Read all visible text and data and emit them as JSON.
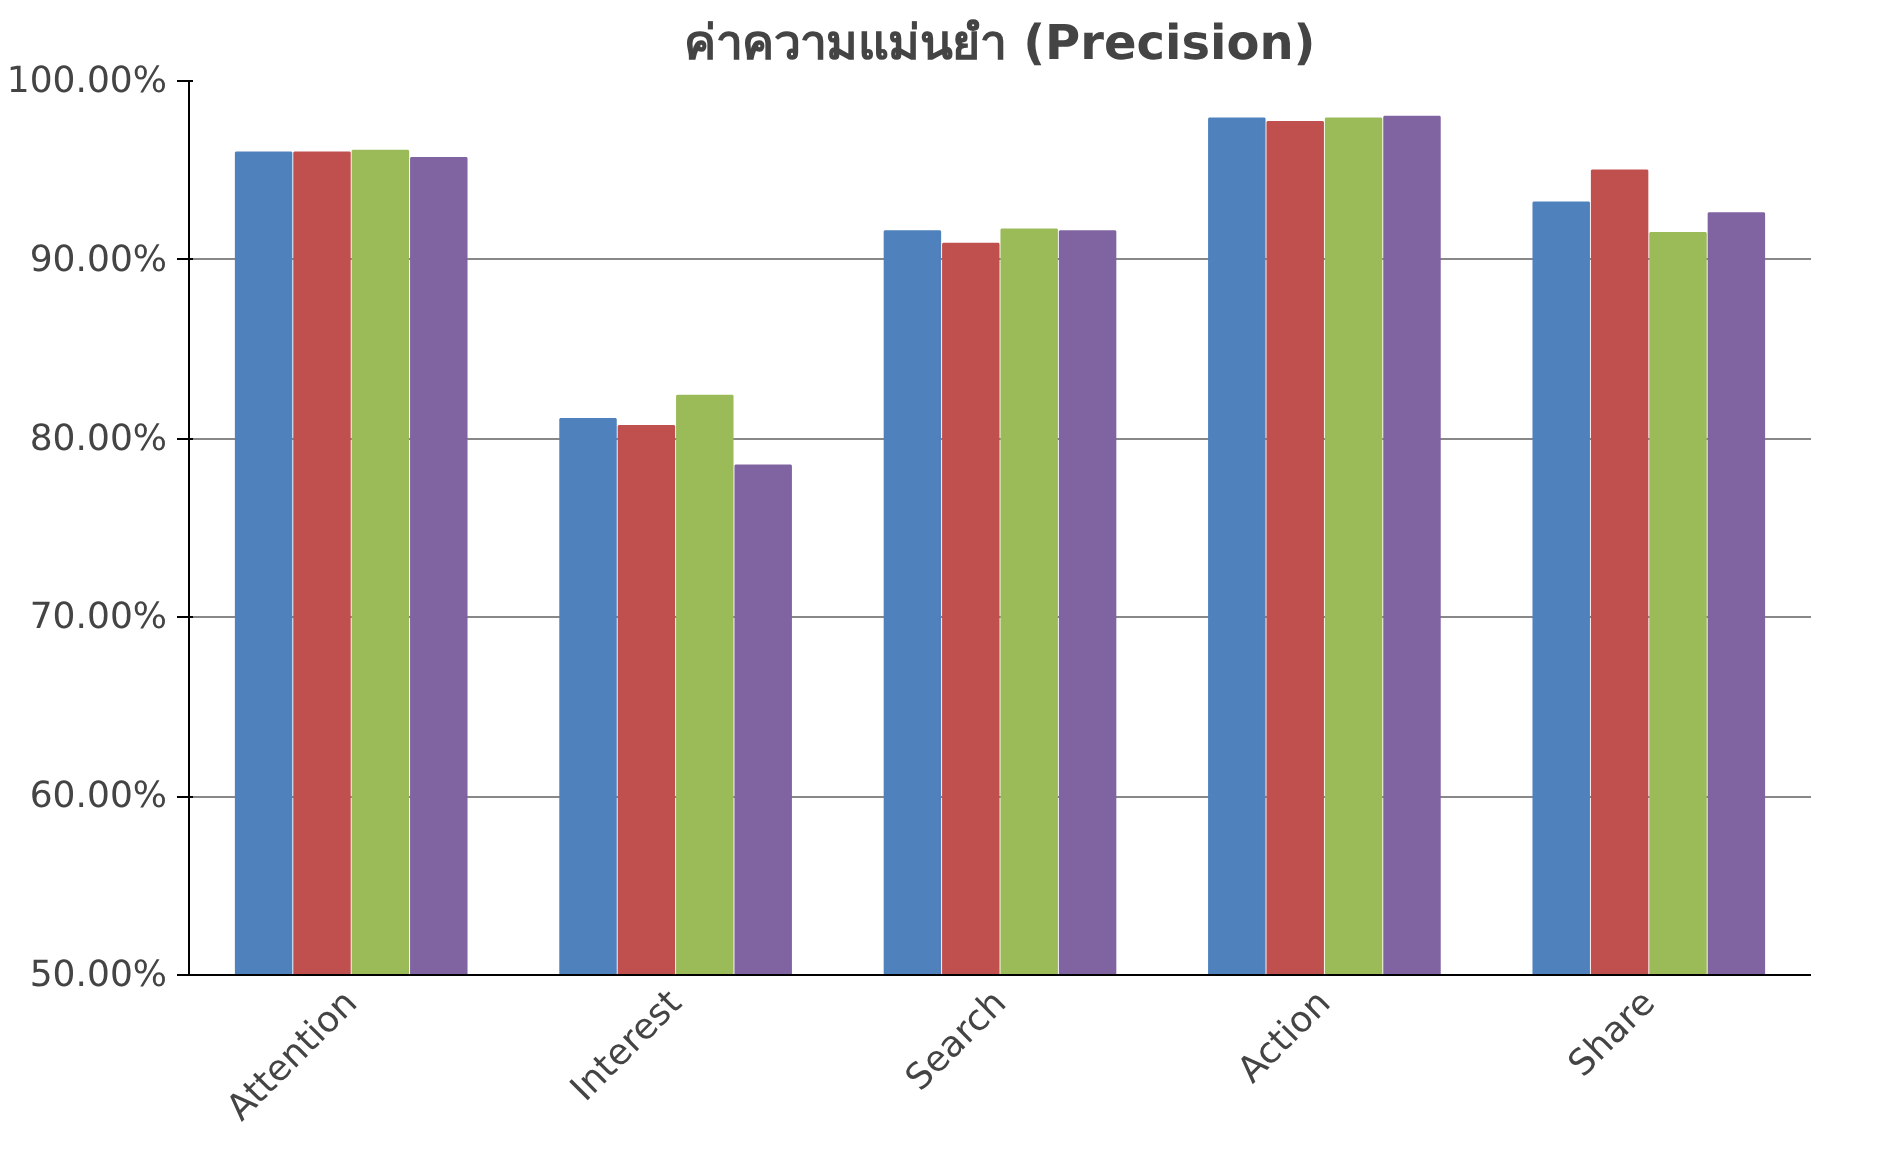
{
  "chart_data": {
    "type": "bar",
    "title": "ค่าความแม่นยำ (Precision)",
    "categories": [
      "Attention",
      "Interest",
      "Search",
      "Action",
      "Share"
    ],
    "series": [
      {
        "color": "#4f81bd",
        "values": [
          96.0,
          81.1,
          91.6,
          97.9,
          93.2
        ]
      },
      {
        "color": "#c0504d",
        "values": [
          96.0,
          80.7,
          90.9,
          97.7,
          95.0
        ]
      },
      {
        "color": "#9bbb59",
        "values": [
          96.1,
          82.4,
          91.7,
          97.9,
          91.5
        ]
      },
      {
        "color": "#8064a2",
        "values": [
          95.7,
          78.5,
          91.6,
          98.0,
          92.6
        ]
      }
    ],
    "ylim": [
      50,
      100
    ],
    "yticks": [
      {
        "value": 50,
        "label": "50.00%"
      },
      {
        "value": 60,
        "label": "60.00%"
      },
      {
        "value": 70,
        "label": "70.00%"
      },
      {
        "value": 80,
        "label": "80.00%"
      },
      {
        "value": 90,
        "label": "90.00%"
      },
      {
        "value": 100,
        "label": "100.00%"
      }
    ],
    "grid": "y"
  }
}
